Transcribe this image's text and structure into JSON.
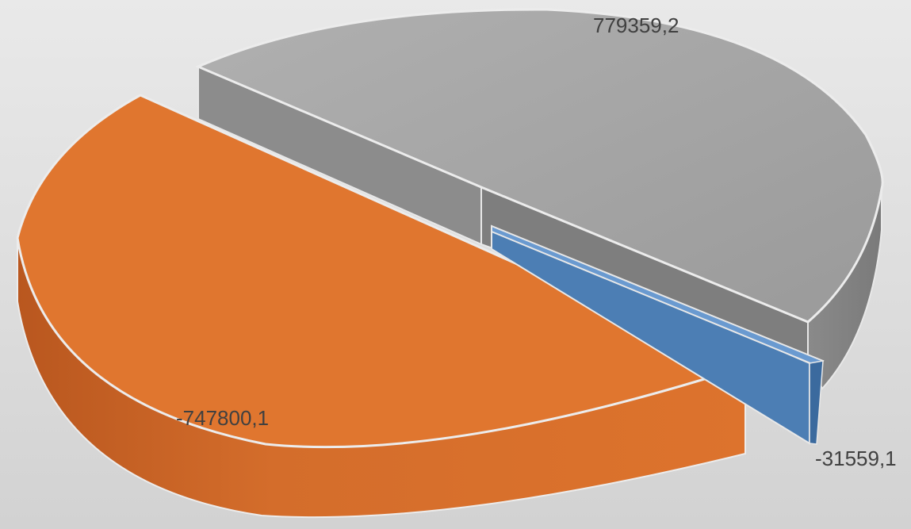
{
  "chart_data": {
    "type": "pie",
    "title": "",
    "style": "3d-exploded",
    "slices": [
      {
        "label": "779359,2",
        "value": 779359.2,
        "color": "#a5a5a5"
      },
      {
        "label": "-747800,1",
        "value": -747800.1,
        "color": "#ed7d31"
      },
      {
        "label": "-31559,1",
        "value": -31559.1,
        "color": "#4f81bd"
      }
    ]
  }
}
